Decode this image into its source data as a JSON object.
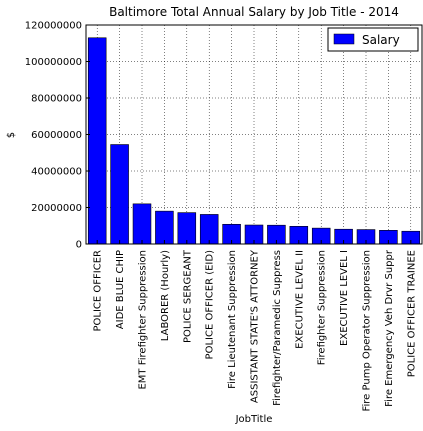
{
  "chart_data": {
    "type": "bar",
    "title": "Baltimore Total Annual Salary by Job Title - 2014",
    "xlabel": "JobTitle",
    "ylabel": "$",
    "ylim": [
      0,
      120000000
    ],
    "yticks": [
      0,
      20000000,
      40000000,
      60000000,
      80000000,
      100000000,
      120000000
    ],
    "grid": true,
    "legend": {
      "position": "top-right",
      "entries": [
        "Salary"
      ]
    },
    "categories": [
      "POLICE OFFICER",
      "AIDE BLUE CHIP",
      "EMT Firefighter Suppression",
      "LABORER (Hourly)",
      "POLICE SERGEANT",
      "POLICE OFFICER (EID)",
      "Fire Lieutenant Suppression",
      "ASSISTANT STATE'S ATTORNEY",
      "Firefighter/Paramedic Suppress",
      "EXECUTIVE LEVEL II",
      "Firefighter Suppression",
      "EXECUTIVE LEVEL I",
      "Fire Pump Operator Suppression",
      "Fire Emergency Veh Drvr Suppr",
      "POLICE OFFICER TRAINEE"
    ],
    "series": [
      {
        "name": "Salary",
        "color": "#0000ff",
        "values": [
          113000000,
          54500000,
          22000000,
          18000000,
          17200000,
          16200000,
          10800000,
          10400000,
          10300000,
          9700000,
          8700000,
          8100000,
          7900000,
          7500000,
          7000000
        ]
      }
    ]
  }
}
